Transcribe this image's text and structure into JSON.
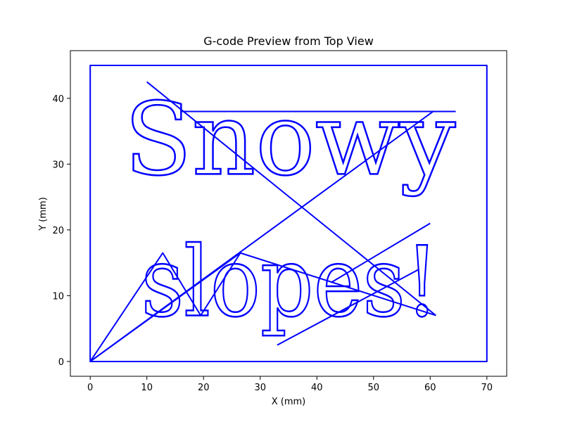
{
  "chart_data": {
    "type": "line",
    "title": "G-code Preview from Top View",
    "xlabel": "X (mm)",
    "ylabel": "Y (mm)",
    "xlim": [
      -3.5,
      73.5
    ],
    "ylim": [
      -2.25,
      47.25
    ],
    "x_ticks": [
      0,
      10,
      20,
      30,
      40,
      50,
      60,
      70
    ],
    "y_ticks": [
      0,
      10,
      20,
      30,
      40
    ],
    "grid": false,
    "line_color": "#0000ff",
    "series": [
      {
        "points": [
          [
            0,
            0
          ],
          [
            0,
            45
          ],
          [
            70,
            45
          ],
          [
            70,
            0
          ],
          [
            0,
            0
          ]
        ]
      },
      {
        "points": [
          [
            0,
            0
          ],
          [
            12.8,
            16.5
          ],
          [
            19.5,
            7
          ],
          [
            12.8,
            16.5
          ],
          [
            0,
            0
          ],
          [
            26.5,
            16.5
          ],
          [
            19.5,
            7
          ],
          [
            26.5,
            16.5
          ],
          [
            61,
            7
          ]
        ]
      },
      {
        "points": [
          [
            10,
            42.5
          ],
          [
            61,
            7
          ]
        ]
      },
      {
        "points": [
          [
            33,
            2.5
          ],
          [
            58,
            14
          ]
        ]
      },
      {
        "points": [
          [
            42.5,
            12
          ],
          [
            60,
            21
          ]
        ]
      },
      {
        "points": [
          [
            0,
            0
          ],
          [
            60.5,
            38
          ]
        ]
      },
      {
        "points": [
          [
            16,
            38
          ],
          [
            64.5,
            38
          ]
        ]
      }
    ],
    "text_paths": [
      {
        "text": "Snowy",
        "x": 6,
        "y": 28.5,
        "width": 58.5,
        "height": 14.5
      },
      {
        "text": "slopes!",
        "x": 9,
        "y": 7,
        "width": 52.5,
        "height": 14
      }
    ]
  }
}
